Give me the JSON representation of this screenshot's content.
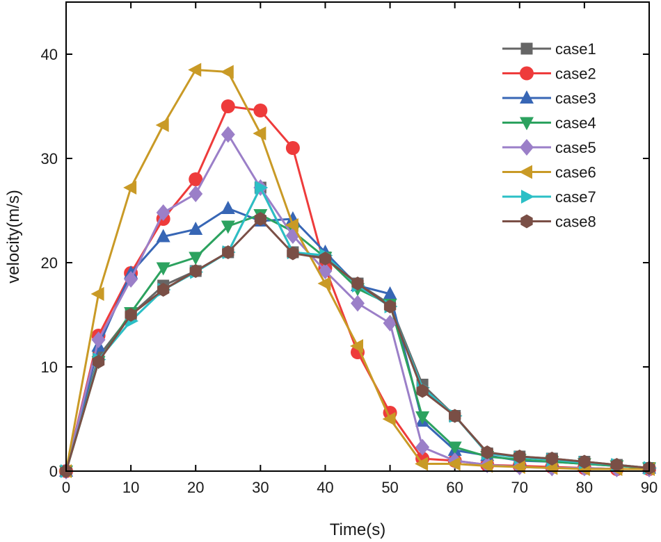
{
  "chart_data": {
    "type": "line",
    "title": "",
    "xlabel": "Time(s)",
    "ylabel": "velocity(m/s)",
    "xlim": [
      0,
      90
    ],
    "ylim": [
      0,
      45
    ],
    "x_ticks": [
      0,
      10,
      20,
      30,
      40,
      50,
      60,
      70,
      80,
      90
    ],
    "y_ticks": [
      0,
      10,
      20,
      30,
      40
    ],
    "grid": false,
    "legend_position": "top-right",
    "x": [
      0,
      5,
      10,
      15,
      20,
      25,
      30,
      35,
      40,
      45,
      50,
      55,
      60,
      65,
      70,
      75,
      80,
      85,
      90
    ],
    "series": [
      {
        "name": "case1",
        "color": "#666666",
        "marker": "square",
        "values": [
          0,
          11.0,
          15.0,
          17.8,
          19.2,
          21.0,
          27.2,
          21.0,
          20.5,
          18.0,
          16.0,
          8.3,
          5.3,
          1.7,
          1.4,
          1.2,
          0.9,
          0.6,
          0.3
        ]
      },
      {
        "name": "case2",
        "color": "#ee3b3b",
        "marker": "circle",
        "values": [
          0,
          13.0,
          19.0,
          24.2,
          28.0,
          35.0,
          34.6,
          31.0,
          19.5,
          11.4,
          5.6,
          1.2,
          1.0,
          0.6,
          0.5,
          0.4,
          0.3,
          0.2,
          0.2
        ]
      },
      {
        "name": "case3",
        "color": "#3766b5",
        "marker": "triangle-up",
        "values": [
          0,
          12.0,
          19.0,
          22.5,
          23.2,
          25.2,
          24.0,
          24.2,
          21.0,
          17.8,
          17.0,
          4.8,
          2.0,
          1.5,
          1.0,
          0.9,
          0.7,
          0.5,
          0.3
        ]
      },
      {
        "name": "case4",
        "color": "#2ca25f",
        "marker": "triangle-down",
        "values": [
          0,
          10.5,
          15.2,
          19.5,
          20.5,
          23.5,
          24.6,
          23.0,
          20.5,
          17.5,
          16.0,
          5.2,
          2.3,
          1.4,
          1.1,
          0.9,
          0.7,
          0.5,
          0.3
        ]
      },
      {
        "name": "case5",
        "color": "#9b7fc8",
        "marker": "diamond",
        "values": [
          0,
          12.6,
          18.4,
          24.8,
          26.6,
          32.3,
          27.2,
          22.6,
          19.2,
          16.1,
          14.2,
          2.3,
          1.0,
          0.6,
          0.4,
          0.3,
          0.3,
          0.2,
          0.2
        ]
      },
      {
        "name": "case6",
        "color": "#c99a26",
        "marker": "triangle-left",
        "values": [
          0,
          17.0,
          27.2,
          33.2,
          38.5,
          38.3,
          32.4,
          23.6,
          18.0,
          12.0,
          5.0,
          0.7,
          0.7,
          0.5,
          0.4,
          0.3,
          0.2,
          0.2,
          0.2
        ]
      },
      {
        "name": "case7",
        "color": "#2bbfc6",
        "marker": "triangle-right",
        "values": [
          0,
          10.7,
          14.4,
          17.4,
          19.1,
          21.0,
          27.2,
          21.0,
          20.7,
          17.8,
          15.8,
          8.0,
          5.3,
          1.7,
          1.3,
          1.1,
          0.8,
          0.6,
          0.3
        ]
      },
      {
        "name": "case8",
        "color": "#7a4f46",
        "marker": "hexagon",
        "values": [
          0,
          10.5,
          15.0,
          17.4,
          19.2,
          21.0,
          24.2,
          20.9,
          20.4,
          18.0,
          15.8,
          7.7,
          5.3,
          1.8,
          1.4,
          1.2,
          0.9,
          0.6,
          0.3
        ]
      }
    ]
  }
}
